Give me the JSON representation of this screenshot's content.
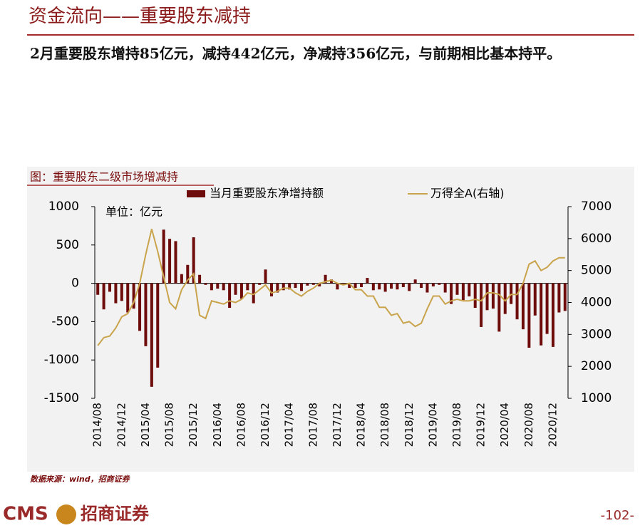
{
  "header": {
    "title": "资金流向——重要股东减持"
  },
  "body": {
    "text": "2月重要股东增持85亿元，减持442亿元，净减持356亿元，与前期相比基本持平。"
  },
  "chart_data": {
    "type": "bar",
    "title": "图：重要股东二级市场增减持",
    "annotation": "单位：亿元",
    "categories": [
      "2014/08",
      null,
      null,
      null,
      "2014/12",
      null,
      null,
      null,
      "2015/04",
      null,
      null,
      null,
      "2015/08",
      null,
      null,
      null,
      "2015/12",
      null,
      null,
      null,
      "2016/04",
      null,
      null,
      null,
      "2016/08",
      null,
      null,
      null,
      "2016/12",
      null,
      null,
      null,
      "2017/04",
      null,
      null,
      null,
      "2017/08",
      null,
      null,
      null,
      "2017/12",
      null,
      null,
      null,
      "2018/04",
      null,
      null,
      null,
      "2018/08",
      null,
      null,
      null,
      "2018/12",
      null,
      null,
      null,
      "2019/04",
      null,
      null,
      null,
      "2019/08",
      null,
      null,
      null,
      "2019/12",
      null,
      null,
      null,
      "2020/04",
      null,
      null,
      null,
      "2020/08",
      null,
      null,
      null,
      "2020/12",
      null,
      null
    ],
    "series": [
      {
        "name": "当月重要股东净增持额",
        "type": "bar",
        "color": "#6e0b0b",
        "values": [
          -150,
          -340,
          -110,
          -260,
          -230,
          -380,
          -330,
          -620,
          -820,
          -1350,
          -1100,
          700,
          580,
          550,
          120,
          240,
          600,
          110,
          -20,
          -90,
          -70,
          -90,
          -320,
          -150,
          -200,
          -90,
          -260,
          -20,
          180,
          -170,
          -120,
          -90,
          -80,
          -60,
          -100,
          -30,
          -20,
          -40,
          110,
          50,
          -80,
          -10,
          -60,
          -60,
          -50,
          70,
          -90,
          -80,
          -110,
          -70,
          -80,
          -50,
          -100,
          50,
          -60,
          -120,
          -40,
          -20,
          -120,
          -270,
          -150,
          -220,
          -170,
          -320,
          -570,
          -350,
          -330,
          -630,
          -400,
          -270,
          -470,
          -600,
          -840,
          -420,
          -810,
          -660,
          -830,
          -380,
          -360
        ]
      },
      {
        "name": "万得全A(右轴)",
        "type": "line",
        "axis": "y2",
        "color": "#c9a44c",
        "values": [
          2650,
          2900,
          2950,
          3200,
          3550,
          3650,
          4000,
          4600,
          5500,
          6300,
          5600,
          4800,
          4000,
          3800,
          4400,
          4700,
          4900,
          3600,
          3500,
          4050,
          4000,
          3950,
          4050,
          4000,
          4100,
          4300,
          4250,
          4400,
          4550,
          4300,
          4350,
          4450,
          4450,
          4300,
          4200,
          4350,
          4450,
          4600,
          4650,
          4700,
          4600,
          4550,
          4600,
          4400,
          4400,
          4200,
          4200,
          3850,
          3850,
          3600,
          3650,
          3350,
          3400,
          3250,
          3350,
          3800,
          4200,
          4200,
          3950,
          4050,
          4100,
          4050,
          4050,
          4100,
          4050,
          4300,
          4300,
          4250,
          4050,
          4250,
          4250,
          4600,
          5200,
          5300,
          5000,
          5100,
          5300,
          5400,
          5400
        ]
      }
    ],
    "ylim": [
      -1500,
      1000
    ],
    "yticks": [
      1000,
      500,
      0,
      -500,
      -1000,
      -1500
    ],
    "y2lim": [
      1000,
      7000
    ],
    "y2ticks": [
      7000,
      6000,
      5000,
      4000,
      3000,
      2000,
      1000
    ],
    "legend": "top"
  },
  "footer": {
    "source": "数据来源：wind，招商证券",
    "logo": "CMS",
    "brand": "招商证券",
    "page": "-102-"
  }
}
